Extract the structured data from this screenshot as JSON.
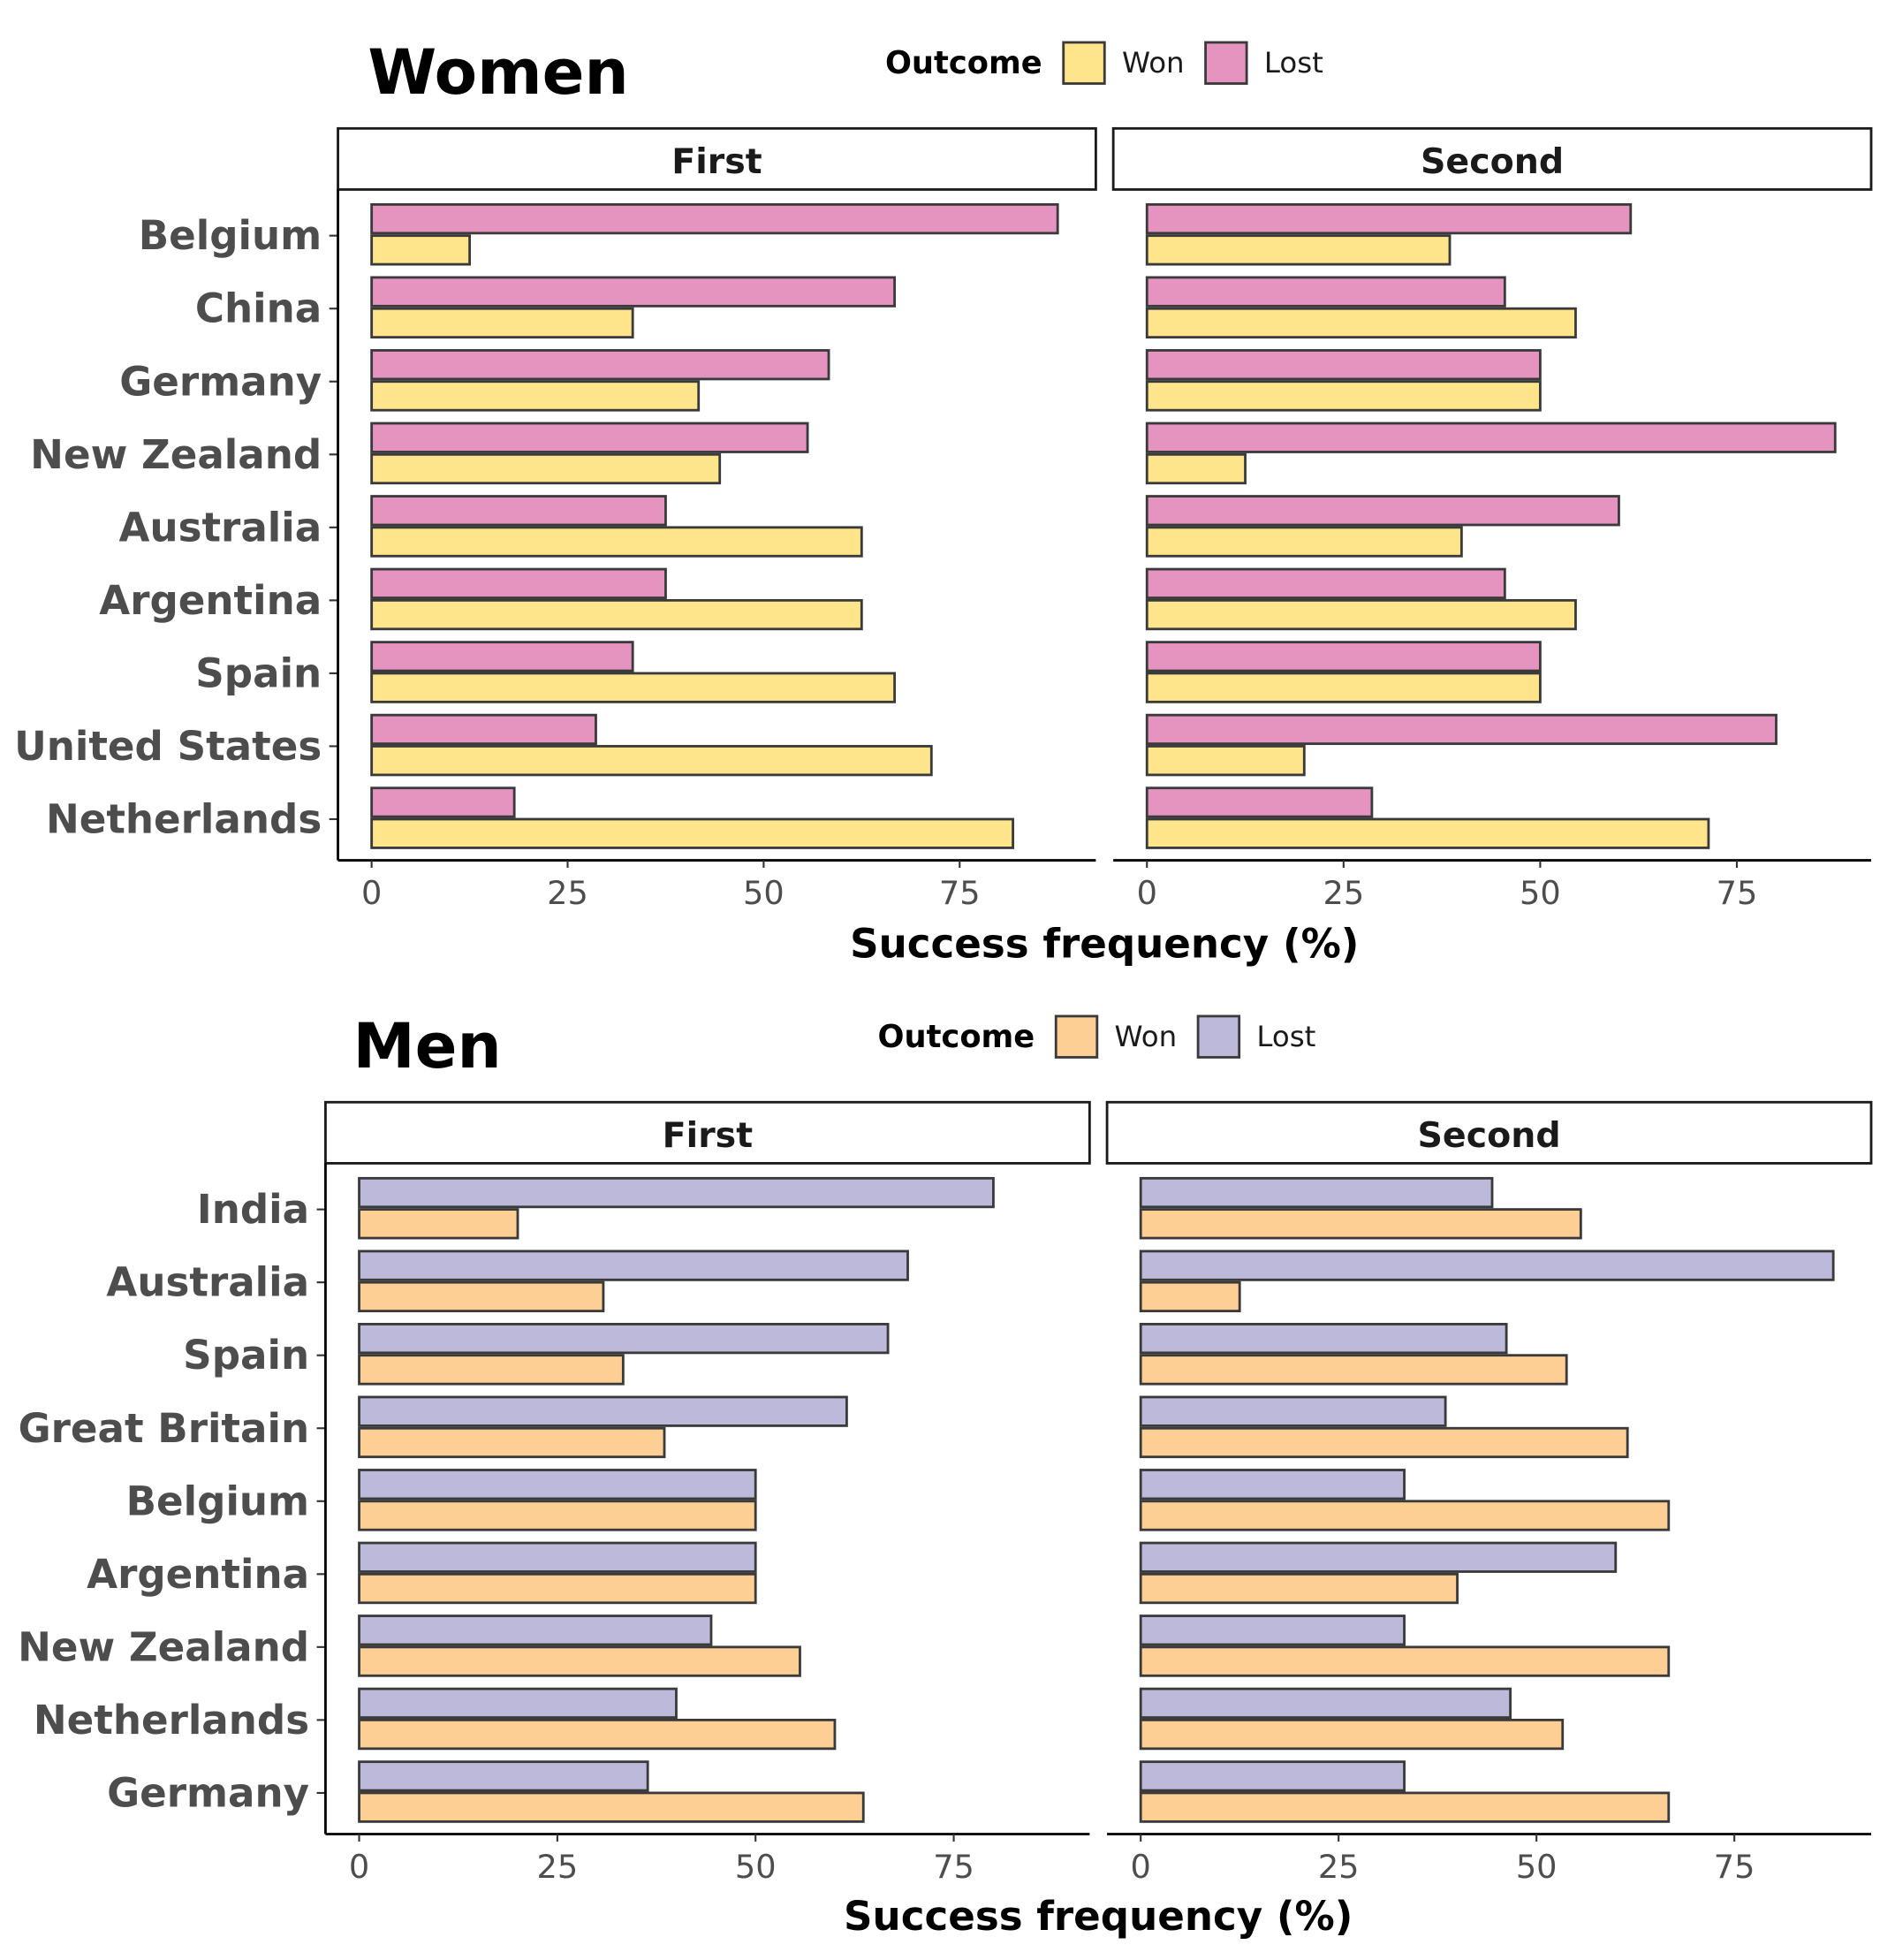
{
  "colors": {
    "women_won": "#FEE48A",
    "women_lost": "#E593BF",
    "men_won": "#FDCF94",
    "men_lost": "#BDB9DA",
    "bar_border": "#3a3a3a"
  },
  "chart_data": [
    {
      "type": "bar",
      "orientation": "horizontal",
      "title": "Women",
      "legend_title": "Outcome",
      "legend": [
        "Won",
        "Lost"
      ],
      "legend_placement": "top",
      "xlabel": "Success frequency (%)",
      "ylabel": "",
      "xticks": [
        0,
        25,
        50,
        75
      ],
      "xlim": [
        0,
        92
      ],
      "grid": false,
      "categories": [
        "Belgium",
        "China",
        "Germany",
        "New Zealand",
        "Australia",
        "Argentina",
        "Spain",
        "United States",
        "Netherlands"
      ],
      "facets": [
        {
          "name": "First",
          "series": [
            {
              "name": "Won",
              "values": [
                12.5,
                33.3,
                41.7,
                44.4,
                62.5,
                62.5,
                66.7,
                71.4,
                81.8
              ]
            },
            {
              "name": "Lost",
              "values": [
                87.5,
                66.7,
                58.3,
                55.6,
                37.5,
                37.5,
                33.3,
                28.6,
                18.2
              ]
            }
          ]
        },
        {
          "name": "Second",
          "series": [
            {
              "name": "Won",
              "values": [
                38.5,
                54.5,
                50,
                12.5,
                40,
                54.5,
                50,
                20,
                71.4
              ]
            },
            {
              "name": "Lost",
              "values": [
                61.5,
                45.5,
                50,
                87.5,
                60,
                45.5,
                50,
                80,
                28.6
              ]
            }
          ]
        }
      ]
    },
    {
      "type": "bar",
      "orientation": "horizontal",
      "title": "Men",
      "legend_title": "Outcome",
      "legend": [
        "Won",
        "Lost"
      ],
      "legend_placement": "top",
      "xlabel": "Success frequency (%)",
      "ylabel": "",
      "xticks": [
        0,
        25,
        50,
        75
      ],
      "xlim": [
        0,
        92
      ],
      "grid": false,
      "categories": [
        "India",
        "Australia",
        "Spain",
        "Great Britain",
        "Belgium",
        "Argentina",
        "New Zealand",
        "Netherlands",
        "Germany"
      ],
      "facets": [
        {
          "name": "First",
          "series": [
            {
              "name": "Won",
              "values": [
                20,
                30.8,
                33.3,
                38.5,
                50,
                50,
                55.6,
                60,
                63.6
              ]
            },
            {
              "name": "Lost",
              "values": [
                80,
                69.2,
                66.7,
                61.5,
                50,
                50,
                44.4,
                40,
                36.4
              ]
            }
          ]
        },
        {
          "name": "Second",
          "series": [
            {
              "name": "Won",
              "values": [
                55.6,
                12.5,
                53.8,
                61.5,
                66.7,
                40,
                66.7,
                53.3,
                66.7
              ]
            },
            {
              "name": "Lost",
              "values": [
                44.4,
                87.5,
                46.2,
                38.5,
                33.3,
                60,
                33.3,
                46.7,
                33.3
              ]
            }
          ]
        }
      ]
    }
  ]
}
